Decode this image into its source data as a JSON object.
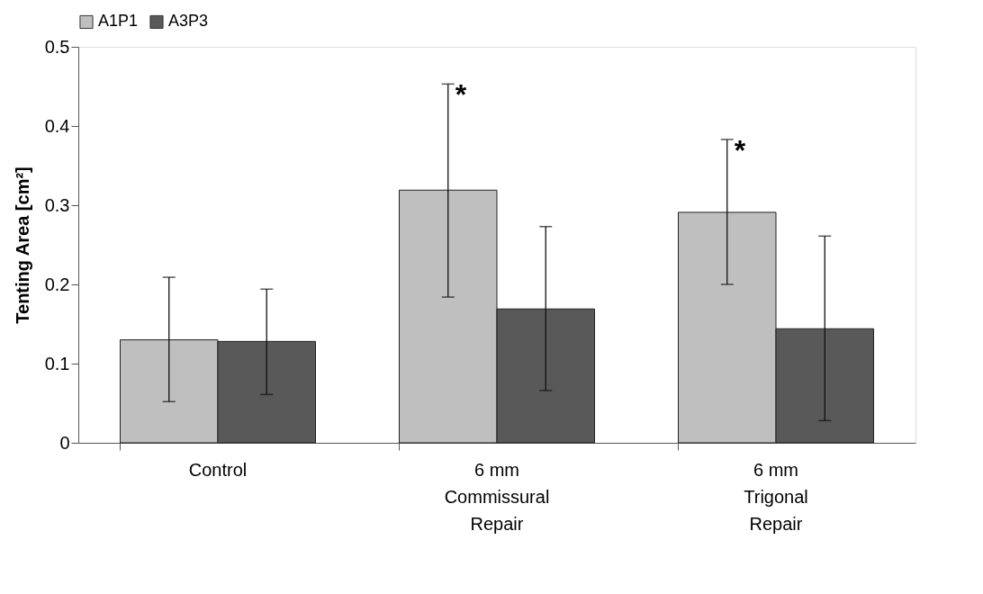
{
  "chart_data": {
    "type": "bar",
    "ylabel": "Tenting Area [cm²]",
    "categories": [
      "Control",
      "6 mm\nCommissural\nRepair",
      "6 mm\nTrigonal\nRepair"
    ],
    "series": [
      {
        "name": "A1P1",
        "color": "#bfbfbf",
        "values": [
          0.13,
          0.319,
          0.291
        ],
        "errors": [
          [
            0.052,
            0.209
          ],
          [
            0.184,
            0.453
          ],
          [
            0.2,
            0.383
          ]
        ]
      },
      {
        "name": "A3P3",
        "color": "#595959",
        "values": [
          0.128,
          0.169,
          0.144
        ],
        "errors": [
          [
            0.061,
            0.194
          ],
          [
            0.066,
            0.273
          ],
          [
            0.028,
            0.261
          ]
        ]
      }
    ],
    "ylim": [
      0,
      0.5
    ],
    "yticks": [
      0,
      0.1,
      0.2,
      0.3,
      0.4,
      0.5
    ],
    "grid": false,
    "legend": "top",
    "annotations": [
      "*",
      "*"
    ]
  }
}
